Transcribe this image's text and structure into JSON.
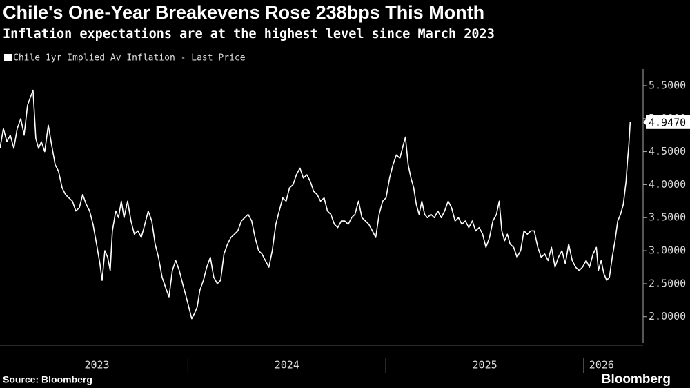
{
  "chart_data": {
    "type": "line",
    "title": "Chile's One-Year Breakevens Rose 238bps This Month",
    "subtitle": "Inflation expectations are at the highest level since March 2023",
    "source": "Source: Bloomberg",
    "brand": "Bloomberg",
    "xlim": [
      2023.05,
      2026.3
    ],
    "ylim": [
      1.6,
      5.75
    ],
    "xticks": [
      {
        "value": 2023.54,
        "label": "2023"
      },
      {
        "value": 2024.5,
        "label": "2024"
      },
      {
        "value": 2025.5,
        "label": "2025"
      },
      {
        "value": 2026.09,
        "label": "2026"
      }
    ],
    "xticks_minor": [
      2024,
      2025,
      2026
    ],
    "yticks": [
      {
        "value": 2,
        "label": "2.0000"
      },
      {
        "value": 2.5,
        "label": "2.5000"
      },
      {
        "value": 3,
        "label": "3.0000"
      },
      {
        "value": 3.5,
        "label": "3.5000"
      },
      {
        "value": 4,
        "label": "4.0000"
      },
      {
        "value": 4.5,
        "label": "4.5000"
      },
      {
        "value": 5,
        "label": "5.0000"
      },
      {
        "value": 5.5,
        "label": "5.5000"
      }
    ],
    "grid": false,
    "legend": "top-left",
    "series": [
      {
        "name": "Chile 1yr Implied Av Inflation - Last Price",
        "color": "#ffffff",
        "x": [
          2023.05,
          2023.067,
          2023.085,
          2023.102,
          2023.12,
          2023.137,
          2023.155,
          2023.172,
          2023.189,
          2023.207,
          2023.217,
          2023.231,
          2023.245,
          2023.259,
          2023.276,
          2023.294,
          2023.311,
          2023.329,
          2023.346,
          2023.364,
          2023.381,
          2023.398,
          2023.416,
          2023.433,
          2023.451,
          2023.468,
          2023.486,
          2023.503,
          2023.52,
          2023.538,
          2023.555,
          2023.566,
          2023.58,
          2023.594,
          2023.607,
          2023.618,
          2023.635,
          2023.649,
          2023.663,
          2023.677,
          2023.695,
          2023.712,
          2023.729,
          2023.747,
          2023.764,
          2023.782,
          2023.799,
          2023.817,
          2023.834,
          2023.851,
          2023.869,
          2023.886,
          2023.904,
          2023.921,
          2023.938,
          2023.956,
          2023.973,
          2023.991,
          2024.008,
          2024.019,
          2024.033,
          2024.047,
          2024.06,
          2024.078,
          2024.095,
          2024.113,
          2024.13,
          2024.148,
          2024.165,
          2024.182,
          2024.2,
          2024.217,
          2024.235,
          2024.252,
          2024.27,
          2024.287,
          2024.304,
          2024.322,
          2024.339,
          2024.357,
          2024.374,
          2024.391,
          2024.409,
          2024.426,
          2024.444,
          2024.461,
          2024.479,
          2024.496,
          2024.513,
          2024.531,
          2024.548,
          2024.566,
          2024.583,
          2024.601,
          2024.618,
          2024.635,
          2024.653,
          2024.67,
          2024.688,
          2024.705,
          2024.722,
          2024.74,
          2024.757,
          2024.775,
          2024.792,
          2024.81,
          2024.827,
          2024.844,
          2024.862,
          2024.879,
          2024.897,
          2024.914,
          2024.932,
          2024.949,
          2024.966,
          2024.984,
          2025.001,
          2025.019,
          2025.036,
          2025.053,
          2025.071,
          2025.088,
          2025.099,
          2025.113,
          2025.127,
          2025.141,
          2025.154,
          2025.168,
          2025.182,
          2025.196,
          2025.21,
          2025.228,
          2025.245,
          2025.263,
          2025.28,
          2025.297,
          2025.315,
          2025.332,
          2025.35,
          2025.367,
          2025.384,
          2025.402,
          2025.419,
          2025.437,
          2025.454,
          2025.472,
          2025.489,
          2025.506,
          2025.524,
          2025.541,
          2025.559,
          2025.573,
          2025.586,
          2025.6,
          2025.614,
          2025.628,
          2025.646,
          2025.663,
          2025.681,
          2025.698,
          2025.715,
          2025.733,
          2025.75,
          2025.768,
          2025.785,
          2025.803,
          2025.82,
          2025.837,
          2025.855,
          2025.872,
          2025.89,
          2025.907,
          2025.924,
          2025.942,
          2025.959,
          2025.977,
          2025.994,
          2026.012,
          2026.029,
          2026.047,
          2026.064,
          2026.074,
          2026.088,
          2026.102,
          2026.116,
          2026.13,
          2026.144,
          2026.158,
          2026.172,
          2026.186,
          2026.2,
          2026.214,
          2026.221,
          2026.228,
          2026.235
        ],
        "values": [
          4.55,
          4.85,
          4.65,
          4.75,
          4.55,
          4.85,
          5.0,
          4.75,
          5.2,
          5.35,
          5.43,
          4.7,
          4.55,
          4.65,
          4.5,
          4.9,
          4.6,
          4.3,
          4.2,
          3.95,
          3.85,
          3.8,
          3.75,
          3.6,
          3.65,
          3.85,
          3.7,
          3.6,
          3.4,
          3.1,
          2.8,
          2.55,
          3.0,
          2.9,
          2.7,
          3.3,
          3.6,
          3.5,
          3.75,
          3.5,
          3.75,
          3.45,
          3.25,
          3.3,
          3.2,
          3.4,
          3.6,
          3.45,
          3.1,
          2.9,
          2.6,
          2.45,
          2.3,
          2.7,
          2.85,
          2.7,
          2.5,
          2.3,
          2.1,
          1.97,
          2.05,
          2.15,
          2.4,
          2.55,
          2.75,
          2.9,
          2.6,
          2.5,
          2.55,
          2.95,
          3.1,
          3.2,
          3.25,
          3.3,
          3.45,
          3.5,
          3.55,
          3.45,
          3.2,
          3.0,
          2.95,
          2.85,
          2.75,
          3.0,
          3.4,
          3.6,
          3.8,
          3.75,
          3.95,
          4.0,
          4.15,
          4.25,
          4.1,
          4.15,
          4.05,
          3.9,
          3.85,
          3.75,
          3.8,
          3.6,
          3.55,
          3.4,
          3.35,
          3.45,
          3.45,
          3.4,
          3.5,
          3.55,
          3.75,
          3.5,
          3.45,
          3.4,
          3.3,
          3.2,
          3.55,
          3.75,
          3.8,
          4.1,
          4.3,
          4.45,
          4.4,
          4.6,
          4.72,
          4.3,
          4.1,
          3.95,
          3.7,
          3.55,
          3.75,
          3.55,
          3.5,
          3.55,
          3.5,
          3.6,
          3.5,
          3.6,
          3.75,
          3.65,
          3.45,
          3.5,
          3.4,
          3.45,
          3.35,
          3.45,
          3.3,
          3.35,
          3.25,
          3.05,
          3.2,
          3.45,
          3.55,
          3.75,
          3.3,
          3.15,
          3.25,
          3.1,
          3.05,
          2.9,
          3.0,
          3.3,
          3.25,
          3.3,
          3.3,
          3.05,
          2.9,
          2.95,
          2.85,
          3.05,
          2.75,
          2.9,
          3.0,
          2.8,
          3.1,
          2.85,
          2.75,
          2.7,
          2.75,
          2.85,
          2.75,
          2.95,
          3.05,
          2.7,
          2.85,
          2.65,
          2.55,
          2.6,
          2.9,
          3.15,
          3.45,
          3.55,
          3.7,
          4.05,
          4.35,
          4.6,
          4.947
        ],
        "value_labels": [
          null,
          null,
          null,
          null,
          null,
          null,
          null,
          null,
          null,
          null,
          null,
          null,
          null,
          null,
          null,
          null,
          null,
          null,
          null,
          null,
          null,
          null,
          null,
          null,
          null,
          null,
          null,
          null,
          null,
          null,
          null,
          null,
          null,
          null,
          null,
          null,
          null,
          null,
          null,
          null,
          null,
          null,
          null,
          null,
          null,
          null,
          null,
          null,
          null,
          null,
          null,
          null,
          null,
          null,
          null,
          null,
          null,
          null,
          null,
          null,
          null,
          null,
          null,
          null,
          null,
          null,
          null,
          null,
          null,
          null,
          null,
          null,
          null,
          null,
          null,
          null,
          null,
          null,
          null,
          null,
          null,
          null,
          null,
          null,
          null,
          null,
          null,
          null,
          null,
          null,
          null,
          null,
          null,
          null,
          null,
          null,
          null,
          null,
          null,
          null,
          null,
          null,
          null,
          null,
          null,
          null,
          null,
          null,
          null,
          null,
          null,
          null,
          null,
          null,
          null,
          null,
          null,
          null,
          null,
          null,
          null,
          null,
          null,
          null,
          null,
          null,
          null,
          null,
          null,
          null,
          null,
          null,
          null,
          null,
          null,
          null,
          null,
          null,
          null,
          null,
          null,
          null,
          null,
          null,
          null,
          null,
          null,
          null,
          null,
          null,
          null,
          null,
          null,
          null,
          null,
          null,
          null,
          null,
          null,
          null,
          null,
          null,
          null,
          null,
          null,
          null,
          null,
          null,
          null,
          null,
          null,
          null,
          null,
          null,
          null,
          null,
          null,
          null,
          null,
          null,
          null,
          null,
          null,
          null,
          null,
          null,
          null,
          null,
          null,
          null,
          null,
          null,
          null,
          null,
          "4.9470"
        ]
      }
    ]
  }
}
